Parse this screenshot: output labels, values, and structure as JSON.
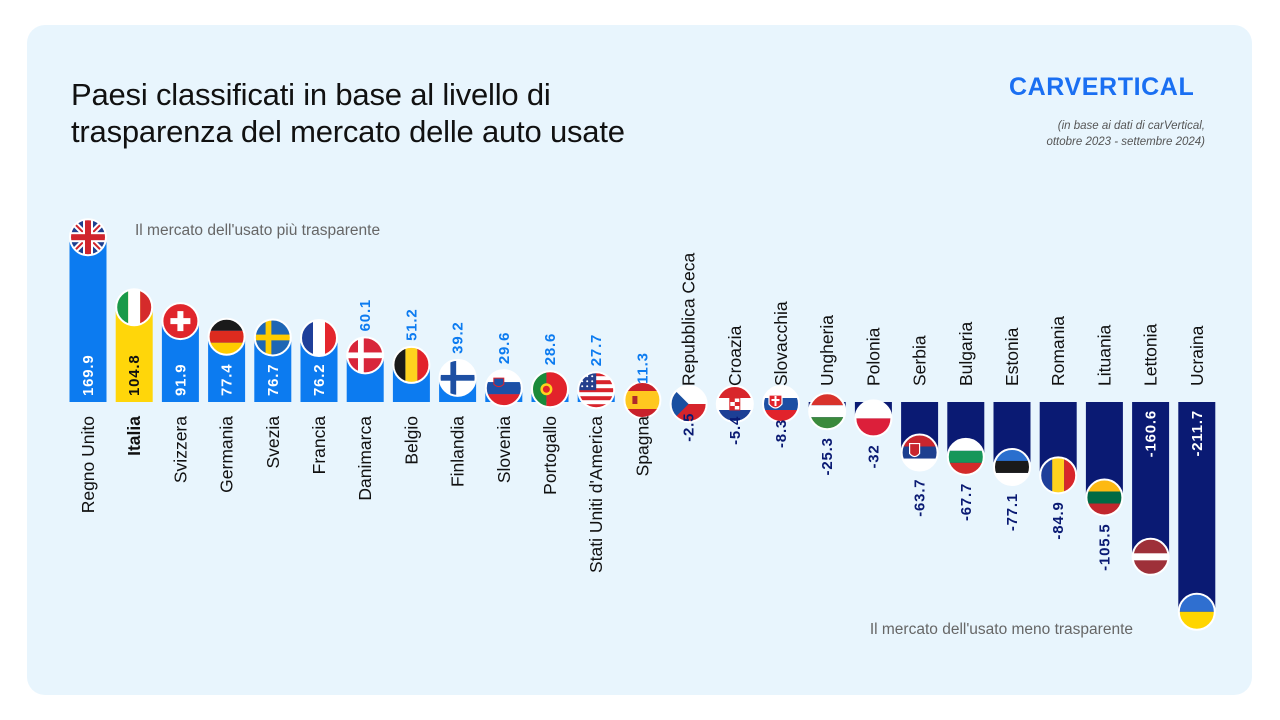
{
  "header": {
    "title_line1": "Paesi classificati in base al livello di",
    "title_line2": "trasparenza del mercato delle auto usate",
    "brand": "CARVERTICAL",
    "source_line1": "(in base ai dati di carVertical,",
    "source_line2": "ottobre 2023 - settembre 2024)"
  },
  "annotations": {
    "top": "Il mercato dell'usato più trasparente",
    "bottom": "Il mercato dell'usato meno trasparente"
  },
  "colors": {
    "positive": "#0c7bf0",
    "highlight": "#ffd60a",
    "negative": "#0a1a73",
    "background": "#e8f5fd"
  },
  "chart_data": {
    "type": "bar",
    "categories": [
      "Regno Unito",
      "Italia",
      "Svizzera",
      "Germania",
      "Svezia",
      "Francia",
      "Danimarca",
      "Belgio",
      "Finlandia",
      "Slovenia",
      "Portogallo",
      "Stati Uniti d'America",
      "Spagna",
      "Repubblica Ceca",
      "Croazia",
      "Slovacchia",
      "Ungheria",
      "Polonia",
      "Serbia",
      "Bulgaria",
      "Estonia",
      "Romania",
      "Lituania",
      "Lettonia",
      "Ucraina"
    ],
    "values": [
      169.9,
      104.8,
      91.9,
      77.4,
      76.7,
      76.2,
      60.1,
      51.2,
      39.2,
      29.6,
      28.6,
      27.7,
      11.3,
      -2.5,
      -5.4,
      -8.3,
      -25.3,
      -32,
      -63.7,
      -67.7,
      -77.1,
      -84.9,
      -105.5,
      -160.6,
      -211.7
    ],
    "labels": [
      "169.9",
      "104.8",
      "91.9",
      "77.4",
      "76.7",
      "76.2",
      "60.1",
      "51.2",
      "39.2",
      "29.6",
      "28.6",
      "27.7",
      "11.3",
      "-2.5",
      "-5.4",
      "-8.3",
      "-25.3",
      "-32",
      "-63.7",
      "-67.7",
      "-77.1",
      "-84.9",
      "-105.5",
      "-160.6",
      "-211.7"
    ],
    "highlight": "Italia",
    "flags": [
      "uk",
      "it",
      "ch",
      "de",
      "se",
      "fr",
      "dk",
      "be",
      "fi",
      "si",
      "pt",
      "us",
      "es",
      "cz",
      "hr",
      "sk",
      "hu",
      "pl",
      "rs",
      "bg",
      "ee",
      "ro",
      "lt",
      "lv",
      "ua"
    ],
    "title": "Paesi classificati in base al livello di trasparenza del mercato delle auto usate",
    "xlabel": "",
    "ylabel": "",
    "grid": false,
    "legend": "none"
  }
}
